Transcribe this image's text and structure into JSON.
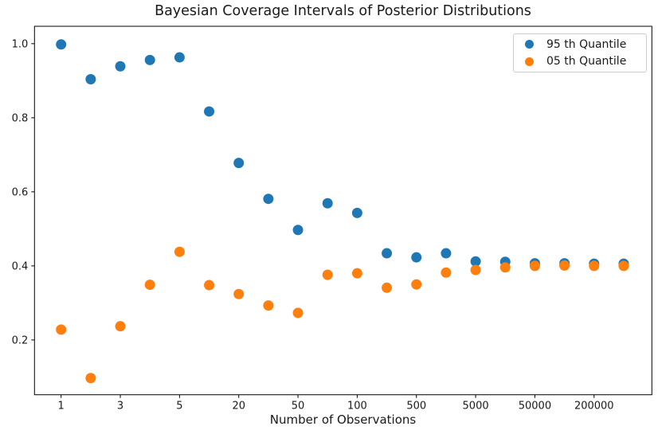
{
  "chart_data": {
    "type": "scatter",
    "title": "Bayesian Coverage Intervals of Posterior Distributions",
    "xlabel": "Number of Observations",
    "ylabel": "",
    "x_scale": "categorical",
    "n_categories": 20,
    "x_tick_indices": [
      0,
      2,
      4,
      6,
      8,
      10,
      12,
      14,
      16,
      18
    ],
    "x_tick_labels": [
      "1",
      "3",
      "5",
      "20",
      "50",
      "100",
      "500",
      "5000",
      "50000",
      "200000"
    ],
    "y_ticks": [
      0.2,
      0.4,
      0.6,
      0.8,
      1.0
    ],
    "ylim": [
      0.052,
      1.047
    ],
    "grid": false,
    "legend_position": "upper right",
    "series": [
      {
        "name": "95 th Quantile",
        "color": "#1f77b4",
        "values": [
          0.998,
          0.904,
          0.939,
          0.956,
          0.963,
          0.817,
          0.678,
          0.581,
          0.497,
          0.569,
          0.543,
          0.434,
          0.423,
          0.434,
          0.412,
          0.411,
          0.407,
          0.407,
          0.406,
          0.406
        ]
      },
      {
        "name": "05 th Quantile",
        "color": "#ff7f0e",
        "values": [
          0.228,
          0.097,
          0.237,
          0.349,
          0.438,
          0.348,
          0.324,
          0.293,
          0.273,
          0.376,
          0.38,
          0.341,
          0.35,
          0.382,
          0.389,
          0.396,
          0.4,
          0.401,
          0.4,
          0.4
        ]
      }
    ]
  }
}
